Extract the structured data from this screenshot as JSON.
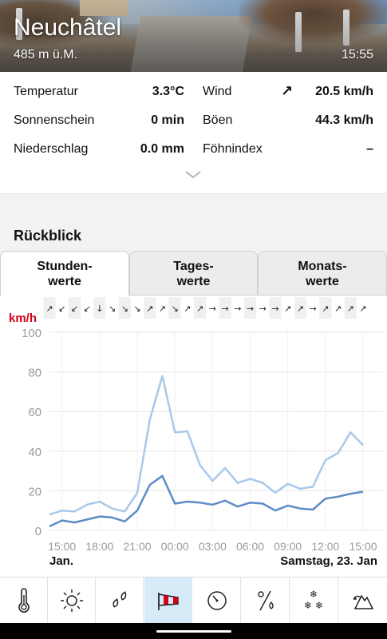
{
  "header": {
    "city": "Neuchâtel",
    "altitude": "485 m ü.M.",
    "time": "15:55"
  },
  "current": {
    "temperature_label": "Temperatur",
    "temperature_value": "3.3°C",
    "wind_label": "Wind",
    "wind_value": "20.5 km/h",
    "wind_direction_icon": "arrow-northeast-icon",
    "sunshine_label": "Sonnenschein",
    "sunshine_value": "0 min",
    "gusts_label": "Böen",
    "gusts_value": "44.3 km/h",
    "precip_label": "Niederschlag",
    "precip_value": "0.0 mm",
    "foehn_label": "Föhnindex",
    "foehn_value": "–"
  },
  "review": {
    "title": "Rückblick",
    "tabs": [
      {
        "line1": "Stunden-",
        "line2": "werte",
        "active": true
      },
      {
        "line1": "Tages-",
        "line2": "werte",
        "active": false
      },
      {
        "line1": "Monats-",
        "line2": "werte",
        "active": false
      }
    ]
  },
  "chart_data": {
    "type": "line",
    "ylabel": "km/h",
    "ylim": [
      0,
      100
    ],
    "yticks": [
      0,
      20,
      40,
      60,
      80,
      100
    ],
    "grid": true,
    "x": [
      "14:00",
      "15:00",
      "16:00",
      "17:00",
      "18:00",
      "19:00",
      "20:00",
      "21:00",
      "22:00",
      "23:00",
      "00:00",
      "01:00",
      "02:00",
      "03:00",
      "04:00",
      "05:00",
      "06:00",
      "07:00",
      "08:00",
      "09:00",
      "10:00",
      "11:00",
      "12:00",
      "13:00",
      "14:00",
      "15:00"
    ],
    "xtick_labels": [
      "15:00",
      "18:00",
      "21:00",
      "00:00",
      "03:00",
      "06:00",
      "09:00",
      "12:00",
      "15:00"
    ],
    "date_left": "Jan.",
    "date_right": "Samstag, 23. Jan",
    "wind_directions": [
      "↗",
      "↙",
      "↙",
      "↙",
      "↓",
      "↘",
      "↘",
      "↘",
      "↗",
      "↗",
      "↘",
      "↗",
      "↗",
      "→",
      "→",
      "→",
      "→",
      "→",
      "→",
      "↗",
      "↗",
      "→",
      "↗",
      "↗",
      "↗",
      "↗"
    ],
    "series": [
      {
        "name": "",
        "color": "#a8c8ea",
        "values": [
          8,
          10,
          9.5,
          13,
          14.5,
          11,
          9.5,
          19,
          56,
          78,
          49.5,
          50,
          33,
          25,
          31.5,
          24,
          26,
          24,
          19,
          23.5,
          21,
          22,
          35.5,
          39,
          49.5,
          43
        ]
      },
      {
        "name": "",
        "color": "#5b8cc8",
        "values": [
          2,
          5,
          4,
          5.5,
          7,
          6.5,
          4.5,
          10,
          23,
          27.5,
          13.5,
          14.5,
          14,
          13,
          15,
          12,
          14,
          13.5,
          10,
          12.5,
          11,
          10.5,
          16,
          17,
          18.5,
          19.5
        ]
      }
    ]
  },
  "bottom_nav": [
    {
      "name": "thermometer-icon",
      "active": false
    },
    {
      "name": "sun-icon",
      "active": false
    },
    {
      "name": "raindrops-icon",
      "active": false
    },
    {
      "name": "windsock-icon",
      "active": true
    },
    {
      "name": "pressure-gauge-icon",
      "active": false
    },
    {
      "name": "humidity-percent-icon",
      "active": false
    },
    {
      "name": "snowflakes-icon",
      "active": false
    },
    {
      "name": "foehn-mountain-icon",
      "active": false
    }
  ]
}
